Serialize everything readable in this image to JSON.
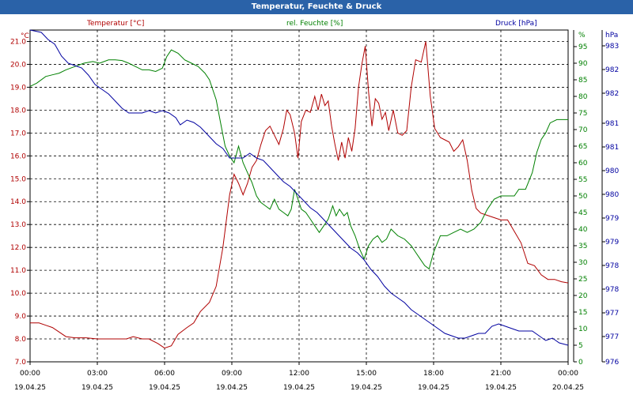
{
  "window": {
    "title": "Temperatur, Feuchte & Druck"
  },
  "chart_data": {
    "type": "line",
    "title": "Temperatur, Feuchte & Druck",
    "grid": true,
    "x_ticks": [
      {
        "time": "00:00",
        "date": "19.04.25"
      },
      {
        "time": "03:00",
        "date": "19.04.25"
      },
      {
        "time": "06:00",
        "date": "19.04.25"
      },
      {
        "time": "09:00",
        "date": "19.04.25"
      },
      {
        "time": "12:00",
        "date": "19.04.25"
      },
      {
        "time": "15:00",
        "date": "19.04.25"
      },
      {
        "time": "18:00",
        "date": "19.04.25"
      },
      {
        "time": "21:00",
        "date": "19.04.25"
      },
      {
        "time": "00:00",
        "date": "20.04.25"
      }
    ],
    "xlim": [
      0,
      24
    ],
    "axes": {
      "temp": {
        "label": "Temperatur [°C]",
        "unit": "°C",
        "color": "#b00000",
        "ylim": [
          7.0,
          21.5
        ],
        "ticks": [
          "7.0",
          "8.0",
          "9.0",
          "10.0",
          "11.0",
          "12.0",
          "13.0",
          "14.0",
          "15.0",
          "16.0",
          "17.0",
          "18.0",
          "19.0",
          "20.0",
          "21.0"
        ]
      },
      "hum": {
        "label": "rel. Feuchte [%]",
        "unit": "%",
        "color": "#008000",
        "ylim": [
          0,
          100
        ],
        "ticks": [
          "0",
          "5",
          "10",
          "15",
          "20",
          "25",
          "30",
          "35",
          "40",
          "45",
          "50",
          "55",
          "60",
          "65",
          "70",
          "75",
          "80",
          "85",
          "90",
          "95",
          "%"
        ]
      },
      "press": {
        "label": "Druck [hPa]",
        "unit": "hPa",
        "color": "#0000a0",
        "ylim": [
          976,
          983
        ],
        "ticks": [
          "976",
          "977",
          "977",
          "978",
          "978",
          "979",
          "979",
          "980",
          "980",
          "981",
          "981",
          "982",
          "982",
          "983",
          "hPa"
        ]
      }
    },
    "series": [
      {
        "name": "Temperatur [°C]",
        "axis": "temp",
        "color": "#b00000",
        "points": [
          [
            0,
            8.7
          ],
          [
            0.4,
            8.7
          ],
          [
            0.7,
            8.6
          ],
          [
            1,
            8.5
          ],
          [
            1.3,
            8.3
          ],
          [
            1.6,
            8.1
          ],
          [
            2,
            8.05
          ],
          [
            2.5,
            8.05
          ],
          [
            3,
            8.0
          ],
          [
            3.5,
            8.0
          ],
          [
            4,
            8.0
          ],
          [
            4.3,
            8.0
          ],
          [
            4.6,
            8.1
          ],
          [
            5,
            8.0
          ],
          [
            5.3,
            8.0
          ],
          [
            5.7,
            7.8
          ],
          [
            6,
            7.6
          ],
          [
            6.3,
            7.7
          ],
          [
            6.6,
            8.2
          ],
          [
            7,
            8.5
          ],
          [
            7.3,
            8.7
          ],
          [
            7.6,
            9.2
          ],
          [
            8,
            9.6
          ],
          [
            8.3,
            10.3
          ],
          [
            8.6,
            12.0
          ],
          [
            8.9,
            14.3
          ],
          [
            9.1,
            15.2
          ],
          [
            9.3,
            14.8
          ],
          [
            9.5,
            14.3
          ],
          [
            9.7,
            14.8
          ],
          [
            9.9,
            15.5
          ],
          [
            10.1,
            15.8
          ],
          [
            10.3,
            16.5
          ],
          [
            10.5,
            17.1
          ],
          [
            10.7,
            17.3
          ],
          [
            10.9,
            16.9
          ],
          [
            11.1,
            16.5
          ],
          [
            11.3,
            17.2
          ],
          [
            11.45,
            18.0
          ],
          [
            11.6,
            17.8
          ],
          [
            11.8,
            17.0
          ],
          [
            11.95,
            15.9
          ],
          [
            12.1,
            17.5
          ],
          [
            12.3,
            18.0
          ],
          [
            12.5,
            17.9
          ],
          [
            12.7,
            18.6
          ],
          [
            12.85,
            18.0
          ],
          [
            13.0,
            18.7
          ],
          [
            13.15,
            18.2
          ],
          [
            13.3,
            18.4
          ],
          [
            13.45,
            17.3
          ],
          [
            13.6,
            16.5
          ],
          [
            13.75,
            15.8
          ],
          [
            13.9,
            16.6
          ],
          [
            14.05,
            15.9
          ],
          [
            14.2,
            16.8
          ],
          [
            14.35,
            16.2
          ],
          [
            14.5,
            17.2
          ],
          [
            14.65,
            19.0
          ],
          [
            14.8,
            20.0
          ],
          [
            14.95,
            20.8
          ],
          [
            15.1,
            18.8
          ],
          [
            15.25,
            17.3
          ],
          [
            15.4,
            18.5
          ],
          [
            15.55,
            18.3
          ],
          [
            15.7,
            17.6
          ],
          [
            15.85,
            17.9
          ],
          [
            16.0,
            17.1
          ],
          [
            16.2,
            18.0
          ],
          [
            16.4,
            17.0
          ],
          [
            16.6,
            16.9
          ],
          [
            16.8,
            17.1
          ],
          [
            17.0,
            19.0
          ],
          [
            17.2,
            20.2
          ],
          [
            17.45,
            20.1
          ],
          [
            17.65,
            21.0
          ],
          [
            17.85,
            18.6
          ],
          [
            18.05,
            17.2
          ],
          [
            18.3,
            16.8
          ],
          [
            18.5,
            16.7
          ],
          [
            18.7,
            16.6
          ],
          [
            18.9,
            16.2
          ],
          [
            19.1,
            16.4
          ],
          [
            19.3,
            16.7
          ],
          [
            19.5,
            15.8
          ],
          [
            19.7,
            14.5
          ],
          [
            19.9,
            13.7
          ],
          [
            20.1,
            13.5
          ],
          [
            20.4,
            13.4
          ],
          [
            20.7,
            13.3
          ],
          [
            21.0,
            13.2
          ],
          [
            21.3,
            13.2
          ],
          [
            21.6,
            12.7
          ],
          [
            21.9,
            12.2
          ],
          [
            22.2,
            11.3
          ],
          [
            22.5,
            11.2
          ],
          [
            22.8,
            10.8
          ],
          [
            23.1,
            10.6
          ],
          [
            23.4,
            10.6
          ],
          [
            23.7,
            10.5
          ],
          [
            24,
            10.45
          ]
        ]
      },
      {
        "name": "rel. Feuchte [%]",
        "axis": "hum",
        "color": "#008000",
        "points": [
          [
            0,
            83
          ],
          [
            0.3,
            84
          ],
          [
            0.7,
            86
          ],
          [
            1,
            86.5
          ],
          [
            1.3,
            87
          ],
          [
            1.6,
            88
          ],
          [
            2,
            89
          ],
          [
            2.4,
            90
          ],
          [
            2.8,
            90.5
          ],
          [
            3.1,
            90
          ],
          [
            3.5,
            91
          ],
          [
            3.8,
            91
          ],
          [
            4.1,
            90.8
          ],
          [
            4.4,
            90
          ],
          [
            4.7,
            89
          ],
          [
            5,
            88
          ],
          [
            5.3,
            88
          ],
          [
            5.6,
            87.5
          ],
          [
            5.9,
            88.5
          ],
          [
            6.1,
            92
          ],
          [
            6.3,
            94
          ],
          [
            6.6,
            93
          ],
          [
            6.9,
            91
          ],
          [
            7.2,
            90
          ],
          [
            7.5,
            89
          ],
          [
            7.8,
            87
          ],
          [
            8.0,
            85
          ],
          [
            8.3,
            79
          ],
          [
            8.5,
            72
          ],
          [
            8.7,
            65
          ],
          [
            8.9,
            62
          ],
          [
            9.1,
            60
          ],
          [
            9.3,
            65
          ],
          [
            9.5,
            60
          ],
          [
            9.7,
            57
          ],
          [
            9.9,
            54
          ],
          [
            10.1,
            50
          ],
          [
            10.3,
            48
          ],
          [
            10.5,
            47
          ],
          [
            10.7,
            46
          ],
          [
            10.9,
            49
          ],
          [
            11.1,
            46
          ],
          [
            11.3,
            45
          ],
          [
            11.5,
            44
          ],
          [
            11.65,
            46
          ],
          [
            11.8,
            52
          ],
          [
            11.95,
            49
          ],
          [
            12.1,
            46
          ],
          [
            12.3,
            45
          ],
          [
            12.5,
            43
          ],
          [
            12.7,
            41
          ],
          [
            12.9,
            39
          ],
          [
            13.1,
            41
          ],
          [
            13.3,
            43
          ],
          [
            13.5,
            47
          ],
          [
            13.65,
            44
          ],
          [
            13.8,
            46
          ],
          [
            14.0,
            44
          ],
          [
            14.15,
            45
          ],
          [
            14.3,
            41
          ],
          [
            14.5,
            38
          ],
          [
            14.7,
            34
          ],
          [
            14.9,
            31
          ],
          [
            15.1,
            35
          ],
          [
            15.3,
            37
          ],
          [
            15.5,
            38
          ],
          [
            15.7,
            36
          ],
          [
            15.9,
            37
          ],
          [
            16.1,
            40
          ],
          [
            16.4,
            38
          ],
          [
            16.7,
            37
          ],
          [
            17.0,
            35
          ],
          [
            17.2,
            33
          ],
          [
            17.4,
            31
          ],
          [
            17.6,
            29
          ],
          [
            17.8,
            28
          ],
          [
            18.0,
            33
          ],
          [
            18.3,
            38
          ],
          [
            18.6,
            38
          ],
          [
            18.9,
            39
          ],
          [
            19.2,
            40
          ],
          [
            19.5,
            39
          ],
          [
            19.8,
            40
          ],
          [
            20.1,
            42
          ],
          [
            20.4,
            46
          ],
          [
            20.7,
            49
          ],
          [
            21.0,
            50
          ],
          [
            21.3,
            50
          ],
          [
            21.6,
            50
          ],
          [
            21.8,
            52
          ],
          [
            22.1,
            52
          ],
          [
            22.4,
            57
          ],
          [
            22.6,
            63
          ],
          [
            22.8,
            67
          ],
          [
            23.0,
            69
          ],
          [
            23.2,
            72
          ],
          [
            23.5,
            73
          ],
          [
            23.8,
            73
          ],
          [
            24,
            73
          ]
        ]
      },
      {
        "name": "Druck [hPa]",
        "axis": "press",
        "color": "#0000a0",
        "points": [
          [
            0,
            983.0
          ],
          [
            0.5,
            982.95
          ],
          [
            0.8,
            982.8
          ],
          [
            1.1,
            982.7
          ],
          [
            1.4,
            982.45
          ],
          [
            1.7,
            982.3
          ],
          [
            2.0,
            982.25
          ],
          [
            2.3,
            982.2
          ],
          [
            2.6,
            982.05
          ],
          [
            2.9,
            981.85
          ],
          [
            3.2,
            981.75
          ],
          [
            3.5,
            981.65
          ],
          [
            3.8,
            981.5
          ],
          [
            4.1,
            981.35
          ],
          [
            4.4,
            981.25
          ],
          [
            4.7,
            981.25
          ],
          [
            5.0,
            981.25
          ],
          [
            5.3,
            981.3
          ],
          [
            5.6,
            981.25
          ],
          [
            5.9,
            981.3
          ],
          [
            6.2,
            981.25
          ],
          [
            6.5,
            981.15
          ],
          [
            6.7,
            981.0
          ],
          [
            7.0,
            981.1
          ],
          [
            7.3,
            981.05
          ],
          [
            7.6,
            980.95
          ],
          [
            8.0,
            980.75
          ],
          [
            8.3,
            980.6
          ],
          [
            8.6,
            980.5
          ],
          [
            8.9,
            980.3
          ],
          [
            9.2,
            980.3
          ],
          [
            9.5,
            980.3
          ],
          [
            9.8,
            980.4
          ],
          [
            10.1,
            980.3
          ],
          [
            10.4,
            980.25
          ],
          [
            10.7,
            980.1
          ],
          [
            11.0,
            979.95
          ],
          [
            11.3,
            979.8
          ],
          [
            11.6,
            979.7
          ],
          [
            11.9,
            979.55
          ],
          [
            12.2,
            979.4
          ],
          [
            12.5,
            979.25
          ],
          [
            12.8,
            979.15
          ],
          [
            13.1,
            979.0
          ],
          [
            13.4,
            978.85
          ],
          [
            13.7,
            978.7
          ],
          [
            14.0,
            978.55
          ],
          [
            14.3,
            978.4
          ],
          [
            14.6,
            978.3
          ],
          [
            14.9,
            978.15
          ],
          [
            15.2,
            977.95
          ],
          [
            15.5,
            977.8
          ],
          [
            15.8,
            977.6
          ],
          [
            16.1,
            977.45
          ],
          [
            16.4,
            977.35
          ],
          [
            16.7,
            977.25
          ],
          [
            17.0,
            977.1
          ],
          [
            17.3,
            977.0
          ],
          [
            17.6,
            976.9
          ],
          [
            17.9,
            976.8
          ],
          [
            18.2,
            976.7
          ],
          [
            18.5,
            976.6
          ],
          [
            18.8,
            976.55
          ],
          [
            19.1,
            976.5
          ],
          [
            19.4,
            976.5
          ],
          [
            19.7,
            976.55
          ],
          [
            20.0,
            976.6
          ],
          [
            20.3,
            976.6
          ],
          [
            20.6,
            976.75
          ],
          [
            20.9,
            976.8
          ],
          [
            21.2,
            976.75
          ],
          [
            21.5,
            976.7
          ],
          [
            21.8,
            976.65
          ],
          [
            22.1,
            976.65
          ],
          [
            22.4,
            976.65
          ],
          [
            22.7,
            976.55
          ],
          [
            23.0,
            976.45
          ],
          [
            23.3,
            976.5
          ],
          [
            23.6,
            976.4
          ],
          [
            24,
            976.35
          ]
        ]
      }
    ]
  }
}
